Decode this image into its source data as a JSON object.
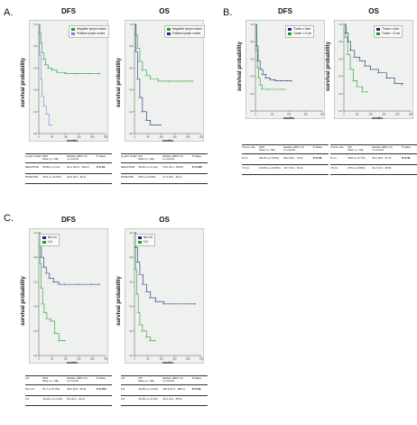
{
  "labels": {
    "A": "A.",
    "B": "B.",
    "C": "C."
  },
  "colors": {
    "negative": "#1b2a7a",
    "positive": "#1a9e2a",
    "tick": "#7f7fd9",
    "grid": "#ffffff",
    "bg": "#eef1ee"
  },
  "tables": {
    "A_dfs": {
      "header": [
        "Lymph nodes",
        "DFS\nRate (+/- SE)",
        "Median (95% CI)\nin months",
        "P Value"
      ],
      "rows": [
        [
          "NEGATIVE",
          "60.8% (+/-5.3)",
          "91.4 (23.6 - 152.2)",
          "P=0.02"
        ],
        [
          "POSITIVE",
          "21% (+/-11.5%)",
          "16.0 (5.9 - 26.1)",
          ""
        ]
      ]
    },
    "A_os": {
      "header": [
        "Lymph nodes",
        "OS\nRate (+/- SE)",
        "Median (95% CI)\nin months",
        "P Value"
      ],
      "rows": [
        [
          "NEGATIVE",
          "48.3% (+/-5.1%)",
          "79.6 (9.1 - 150.0)",
          "P=0.005"
        ],
        [
          "POSITIVE",
          "22% (+/-9.5%)",
          "17.0 (8.0 - 26.1)",
          ""
        ]
      ]
    },
    "B_dfs": {
      "header": [
        "Tumor size",
        "DFS\nRate (+/- SE)",
        "Median (95% CI)\nin months",
        "P Value"
      ],
      "rows": [
        [
          "5 cm",
          "38.1% (+/-5.8%)",
          "28.2 (8.2 - 74.3)",
          "P=0.08"
        ],
        [
          ">5 cm",
          "22.0% (+/-10.9%)",
          "10.7 (5.3 - 16.2)",
          ""
        ]
      ]
    },
    "B_os": {
      "header": [
        "Tumor size",
        "OS\nRate (+/- SE)",
        "Median (95% CI)\nin months",
        "P Value"
      ],
      "rows": [
        [
          "5 cm",
          "45% (+/-5.7%)",
          "35.2 (6.8 - 57.3)",
          "P=0.08"
        ],
        [
          ">5 cm",
          "27% (+/-8.8%)",
          "21.0 (3.3 - 38.5)",
          ""
        ]
      ]
    },
    "C_dfs": {
      "header": [
        "LVI",
        "DFS\nRate (+/- SE)",
        "Median (95% CI)\nin months",
        "P Value"
      ],
      "rows": [
        [
          "NO LVI",
          "61.7 (+/-5.3%)",
          "28.2 (5.8 - 60.5)",
          "P=0.001"
        ],
        [
          "LVI",
          "16.4% (+/-1.0%)",
          "8.6 (8.1 - 16.0)",
          ""
        ]
      ]
    },
    "C_os": {
      "header": [
        "LVI",
        "OS\nRate (+/- SE)",
        "Median (95% CI)\nin months",
        "P Value"
      ],
      "rows": [
        [
          "LVI",
          "49.3% (+/-4.2%)",
          "105.0 (5.9 - 185.1)",
          "P=0.09"
        ],
        [
          "LVI",
          "23.2% (+/-8.1%)",
          "22.0 (2.9 - 25.6)",
          ""
        ]
      ]
    }
  },
  "chart_data": [
    {
      "id": "A_dfs",
      "type": "line",
      "title": "DFS",
      "xlabel": "months",
      "ylabel": "survival probability",
      "xlim": [
        0,
        250
      ],
      "ylim": [
        0,
        1
      ],
      "xticks": [
        0,
        50,
        100,
        150,
        200,
        250
      ],
      "yticks": [
        "0,0",
        "0,2",
        "0,4",
        "0,6",
        "0,8",
        "1,0"
      ],
      "legend": "top-right",
      "series": [
        {
          "name": "Negative lymph nodes",
          "color": "#1a9e2a",
          "x": [
            0,
            4,
            8,
            12,
            18,
            25,
            35,
            50,
            70,
            100,
            140,
            190,
            230
          ],
          "y": [
            1.0,
            0.92,
            0.83,
            0.74,
            0.68,
            0.63,
            0.6,
            0.58,
            0.56,
            0.55,
            0.55,
            0.55,
            0.55
          ]
        },
        {
          "name": "Positive lymph nodes",
          "color": "#7f7fd9",
          "x": [
            0,
            3,
            8,
            12,
            18,
            28,
            38,
            50
          ],
          "y": [
            1.0,
            0.72,
            0.5,
            0.34,
            0.25,
            0.18,
            0.08,
            0.08
          ]
        }
      ]
    },
    {
      "id": "A_os",
      "type": "line",
      "title": "OS",
      "xlabel": "months",
      "ylabel": "survival probability",
      "xlim": [
        0,
        250
      ],
      "ylim": [
        0,
        1
      ],
      "xticks": [
        0,
        50,
        100,
        150,
        200,
        250
      ],
      "yticks": [
        "0,0",
        "0,2",
        "0,4",
        "0,6",
        "0,8",
        "1,0"
      ],
      "legend": "top-right",
      "series": [
        {
          "name": "Negative lymph nodes",
          "color": "#1a9e2a",
          "x": [
            0,
            6,
            12,
            20,
            30,
            45,
            60,
            90,
            130,
            180,
            220
          ],
          "y": [
            1.0,
            0.9,
            0.78,
            0.66,
            0.58,
            0.53,
            0.5,
            0.48,
            0.48,
            0.48,
            0.48
          ]
        },
        {
          "name": "Positive lymph nodes",
          "color": "#1b2a7a",
          "x": [
            0,
            5,
            12,
            20,
            30,
            45,
            60,
            100
          ],
          "y": [
            1.0,
            0.75,
            0.5,
            0.33,
            0.2,
            0.12,
            0.08,
            0.08
          ]
        }
      ]
    },
    {
      "id": "B_dfs",
      "type": "line",
      "title": "DFS",
      "xlabel": "months",
      "ylabel": "survival probability",
      "xlim": [
        0,
        200
      ],
      "ylim": [
        0,
        1
      ],
      "xticks": [
        0,
        50,
        100,
        150,
        200
      ],
      "yticks": [
        "0,0",
        "0,2",
        "0,4",
        "0,6",
        "0,8",
        "1,0"
      ],
      "legend": "top-right",
      "series": [
        {
          "name": "Tumor ≤ 5cm",
          "color": "#1b2a7a",
          "x": [
            0,
            4,
            8,
            14,
            22,
            32,
            45,
            60,
            80,
            100,
            110
          ],
          "y": [
            1.0,
            0.75,
            0.58,
            0.48,
            0.42,
            0.38,
            0.36,
            0.35,
            0.35,
            0.35,
            0.35
          ]
        },
        {
          "name": "Tumor > 5 cm",
          "color": "#1a9e2a",
          "x": [
            0,
            3,
            6,
            10,
            14,
            20,
            40,
            80,
            90
          ],
          "y": [
            1.0,
            0.7,
            0.5,
            0.38,
            0.3,
            0.25,
            0.25,
            0.25,
            0.25
          ]
        }
      ]
    },
    {
      "id": "B_os",
      "type": "line",
      "title": "OS",
      "xlabel": "months",
      "ylabel": "survival probability",
      "xlim": [
        0,
        250
      ],
      "ylim": [
        0,
        1
      ],
      "xticks": [
        0,
        50,
        100,
        150,
        200,
        250
      ],
      "yticks": [
        "0,0",
        "0,2",
        "0,4",
        "0,6",
        "0,8",
        "1,0"
      ],
      "legend": "top-right",
      "series": [
        {
          "name": "Tumor ≤ 5cm",
          "color": "#1b2a7a",
          "x": [
            0,
            8,
            16,
            25,
            40,
            60,
            80,
            100,
            130,
            160,
            190,
            220
          ],
          "y": [
            1.0,
            0.9,
            0.8,
            0.7,
            0.62,
            0.58,
            0.52,
            0.48,
            0.44,
            0.38,
            0.32,
            0.3
          ]
        },
        {
          "name": "Tumor > 5 cm",
          "color": "#1a9e2a",
          "x": [
            0,
            6,
            14,
            24,
            36,
            50,
            70,
            90
          ],
          "y": [
            1.0,
            0.85,
            0.65,
            0.48,
            0.35,
            0.28,
            0.22,
            0.22
          ]
        }
      ]
    },
    {
      "id": "C_dfs",
      "type": "line",
      "title": "DFS",
      "xlabel": "months",
      "ylabel": "survival probability",
      "xlim": [
        0,
        250
      ],
      "ylim": [
        0,
        1
      ],
      "xticks": [
        0,
        50,
        100,
        150,
        200,
        250
      ],
      "yticks": [
        "0,0",
        "0,2",
        "0,4",
        "0,6",
        "0,8",
        "1,0"
      ],
      "legend": "top-left",
      "series": [
        {
          "name": "No LVI",
          "color": "#1b2a7a",
          "x": [
            0,
            5,
            10,
            18,
            28,
            40,
            55,
            75,
            100,
            150,
            200,
            230
          ],
          "y": [
            1.0,
            0.9,
            0.8,
            0.72,
            0.67,
            0.63,
            0.6,
            0.58,
            0.58,
            0.58,
            0.58,
            0.58
          ]
        },
        {
          "name": "LVI",
          "color": "#1a9e2a",
          "x": [
            0,
            4,
            9,
            14,
            20,
            30,
            45,
            60,
            75,
            100
          ],
          "y": [
            1.0,
            0.75,
            0.55,
            0.42,
            0.35,
            0.3,
            0.28,
            0.18,
            0.12,
            0.12
          ]
        }
      ]
    },
    {
      "id": "C_os",
      "type": "line",
      "title": "OS",
      "xlabel": "months",
      "ylabel": "survival probability",
      "xlim": [
        0,
        250
      ],
      "ylim": [
        0,
        1
      ],
      "xticks": [
        0,
        50,
        100,
        150,
        200,
        250
      ],
      "yticks": [
        "0,0",
        "0,2",
        "0,4",
        "0,6",
        "0,8",
        "1,0"
      ],
      "legend": "top-left",
      "series": [
        {
          "name": "No LVI",
          "color": "#1b2a7a",
          "x": [
            0,
            6,
            12,
            20,
            32,
            45,
            60,
            80,
            110,
            150,
            200,
            230
          ],
          "y": [
            1.0,
            0.88,
            0.76,
            0.66,
            0.58,
            0.52,
            0.47,
            0.44,
            0.42,
            0.42,
            0.42,
            0.42
          ]
        },
        {
          "name": "LVI",
          "color": "#1a9e2a",
          "x": [
            0,
            4,
            8,
            14,
            20,
            30,
            45,
            60,
            80
          ],
          "y": [
            1.0,
            0.7,
            0.5,
            0.35,
            0.25,
            0.2,
            0.15,
            0.12,
            0.12
          ]
        }
      ]
    }
  ]
}
